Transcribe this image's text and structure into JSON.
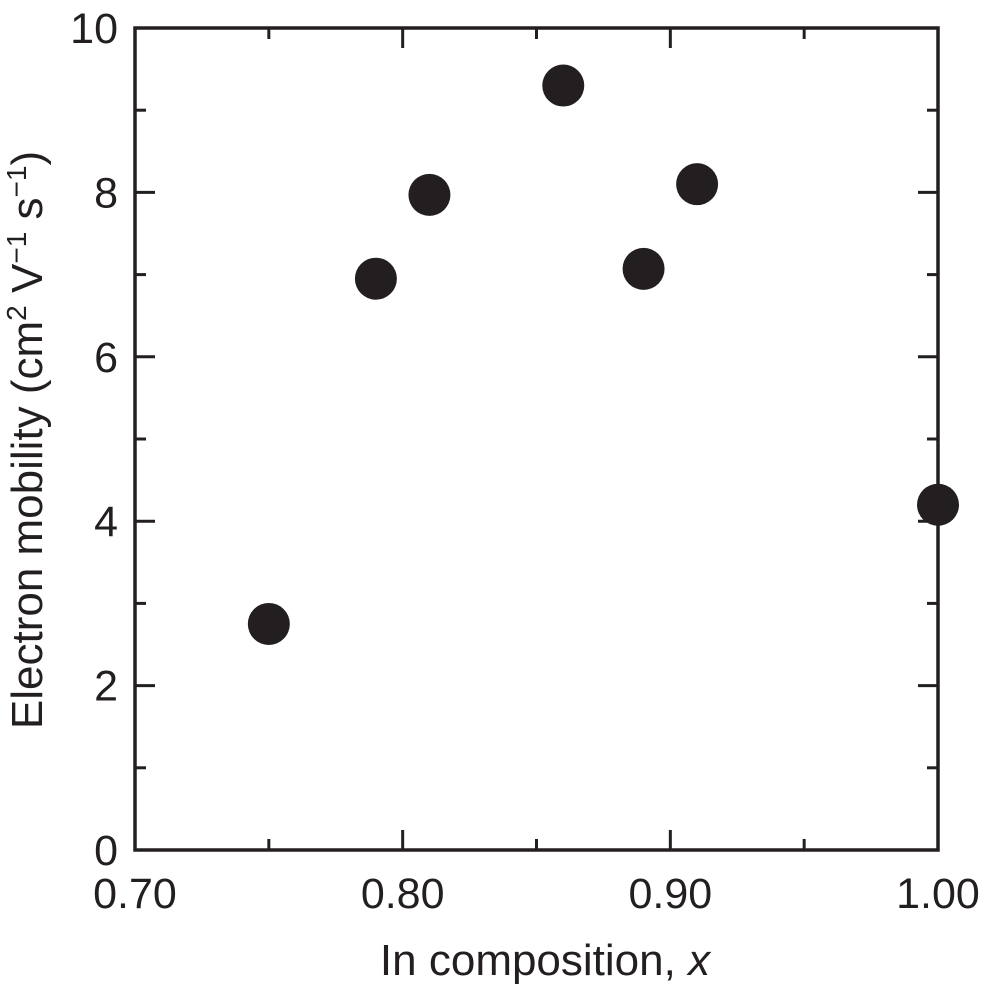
{
  "chart_data": {
    "type": "scatter",
    "title": "",
    "xlabel": "In composition, ",
    "xlabel_var": "x",
    "ylabel": "Electron mobility (cm",
    "ylabel_sup1": "2",
    "ylabel_mid1": " V",
    "ylabel_sup2": "−1",
    "ylabel_mid2": " s",
    "ylabel_sup3": "−1",
    "ylabel_end": ")",
    "xlim": [
      0.7,
      1.0
    ],
    "ylim": [
      0,
      10
    ],
    "x_ticks_major": [
      0.7,
      0.8,
      0.9,
      1.0
    ],
    "x_tick_labels": [
      "0.70",
      "0.80",
      "0.90",
      "1.00"
    ],
    "x_ticks_minor": [
      0.75,
      0.85,
      0.95
    ],
    "y_ticks_major": [
      0,
      2,
      4,
      6,
      8,
      10
    ],
    "y_tick_labels": [
      "0",
      "2",
      "4",
      "6",
      "8",
      "10"
    ],
    "y_ticks_minor": [
      1,
      3,
      5,
      7,
      9
    ],
    "grid": false,
    "marker_color": "#231f20",
    "points": [
      {
        "x": 0.75,
        "y": 2.75
      },
      {
        "x": 0.79,
        "y": 6.95
      },
      {
        "x": 0.81,
        "y": 7.97
      },
      {
        "x": 0.86,
        "y": 9.3
      },
      {
        "x": 0.89,
        "y": 7.07
      },
      {
        "x": 0.91,
        "y": 8.1
      },
      {
        "x": 1.0,
        "y": 4.2
      }
    ]
  }
}
